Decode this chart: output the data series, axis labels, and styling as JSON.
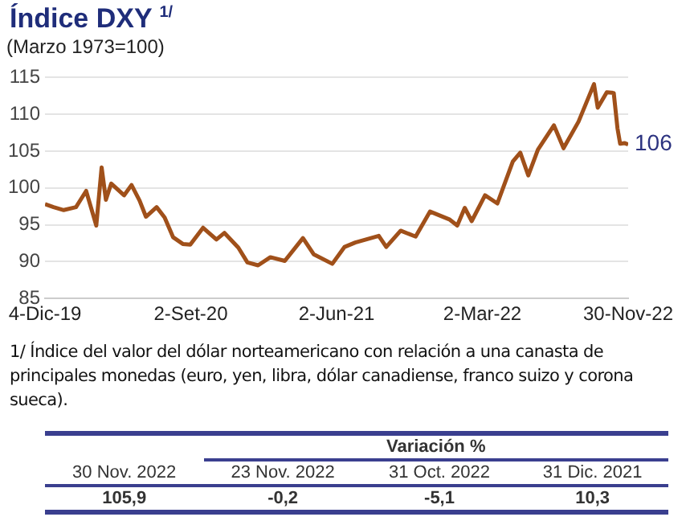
{
  "chart_data": {
    "type": "line",
    "title": "Índice DXY $^{1/}$",
    "subtitle": "(Marzo 1973=100)",
    "x": [
      "2019-12-04",
      "2019-12-20",
      "2020-01-08",
      "2020-01-31",
      "2020-02-19",
      "2020-03-09",
      "2020-03-19",
      "2020-03-27",
      "2020-04-06",
      "2020-04-30",
      "2020-05-14",
      "2020-05-29",
      "2020-06-10",
      "2020-06-30",
      "2020-07-15",
      "2020-07-31",
      "2020-08-18",
      "2020-09-01",
      "2020-09-25",
      "2020-10-20",
      "2020-11-04",
      "2020-11-30",
      "2020-12-17",
      "2021-01-06",
      "2021-01-29",
      "2021-02-25",
      "2021-03-31",
      "2021-04-20",
      "2021-05-25",
      "2021-06-17",
      "2021-07-07",
      "2021-08-20",
      "2021-09-03",
      "2021-09-30",
      "2021-10-28",
      "2021-11-24",
      "2021-12-31",
      "2022-01-14",
      "2022-01-28",
      "2022-02-10",
      "2022-03-07",
      "2022-03-30",
      "2022-04-28",
      "2022-05-12",
      "2022-05-27",
      "2022-06-14",
      "2022-07-14",
      "2022-08-01",
      "2022-08-29",
      "2022-09-27",
      "2022-10-04",
      "2022-10-21",
      "2022-11-03",
      "2022-11-10",
      "2022-11-15",
      "2022-11-23",
      "2022-11-30"
    ],
    "series": [
      {
        "color": "#a0501a",
        "values": [
          97.8,
          97.4,
          97.0,
          97.4,
          99.6,
          94.9,
          102.8,
          98.4,
          100.6,
          99.0,
          100.4,
          98.3,
          96.1,
          97.4,
          96.0,
          93.3,
          92.4,
          92.3,
          94.6,
          93.0,
          93.9,
          91.9,
          89.9,
          89.5,
          90.6,
          90.1,
          93.2,
          91.0,
          89.7,
          92.0,
          92.6,
          93.5,
          92.0,
          94.2,
          93.4,
          96.8,
          95.7,
          94.9,
          97.3,
          95.5,
          99.0,
          97.9,
          103.6,
          104.8,
          101.7,
          105.2,
          108.5,
          105.4,
          109.0,
          114.1,
          110.9,
          113.0,
          112.9,
          108.1,
          106.0,
          106.1,
          105.9
        ]
      }
    ],
    "xlim": [
      "2019-12-04",
      "2022-11-30"
    ],
    "xticks": [
      {
        "value": "2019-12-04",
        "label": "4-Dic-19"
      },
      {
        "value": "2020-09-02",
        "label": "2-Set-20"
      },
      {
        "value": "2021-06-02",
        "label": "2-Jun-21"
      },
      {
        "value": "2022-03-02",
        "label": "2-Mar-22"
      },
      {
        "value": "2022-11-30",
        "label": "30-Nov-22"
      }
    ],
    "ylim": [
      85,
      115
    ],
    "yticks": [
      85,
      90,
      95,
      100,
      105,
      110,
      115
    ],
    "grid": "y",
    "legend": false,
    "marker": "none",
    "line_style": "solid",
    "annotations": [
      {
        "text": "106",
        "x": "2022-11-30",
        "y": 106
      },
      "1/ Índice del valor del dólar norteamericano con relación a una canasta de principales monedas (euro, yen, libra, dólar canadiense, franco suizo y corona sueca).",
      "Variación %",
      "30 Nov. 2022",
      "23 Nov. 2022",
      "31 Oct. 2022",
      "31 Dic. 2021",
      "105,9",
      "-0,2",
      "-5,1",
      "10,3"
    ]
  }
}
